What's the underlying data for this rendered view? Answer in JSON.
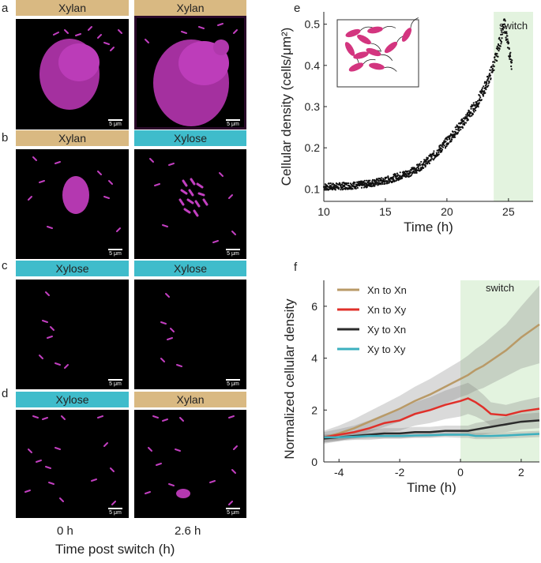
{
  "panels": {
    "a": {
      "letter": "a",
      "left_label": "Xylan",
      "right_label": "Xylan",
      "left_scale": "5 μm",
      "right_scale": "5 μm"
    },
    "b": {
      "letter": "b",
      "left_label": "Xylan",
      "right_label": "Xylose",
      "left_scale": "5 μm",
      "right_scale": "5 μm"
    },
    "c": {
      "letter": "c",
      "left_label": "Xylose",
      "right_label": "Xylose",
      "left_scale": "5 μm",
      "right_scale": "5 μm"
    },
    "d": {
      "letter": "d",
      "left_label": "Xylose",
      "right_label": "Xylan",
      "left_scale": "5 μm",
      "right_scale": "5 μm"
    }
  },
  "micro_bottom": {
    "left_time": "0 h",
    "right_time": "2.6 h",
    "xlabel": "Time post switch (h)"
  },
  "colors": {
    "xylan": "#d9b982",
    "xylose": "#3fbccb",
    "cells": "#c23fc0",
    "switch_shade": "#e3f3df"
  },
  "chart_data": [
    {
      "id": "e",
      "letter": "e",
      "type": "scatter",
      "title": "",
      "xlabel": "Time (h)",
      "ylabel": "Cellular density (cells/μm²)",
      "xlim": [
        10,
        27
      ],
      "ylim": [
        0.07,
        0.53
      ],
      "xticks": [
        10,
        15,
        20,
        25
      ],
      "yticks": [
        0.1,
        0.2,
        0.3,
        0.4,
        0.5
      ],
      "shade": {
        "from": 23.8,
        "to": 27,
        "label": "switch"
      },
      "trend": {
        "t": [
          10,
          11,
          12,
          13,
          14,
          15,
          16,
          17,
          17.5,
          18,
          18.5,
          19,
          19.5,
          20,
          20.5,
          21,
          21.5,
          22,
          22.5,
          23,
          23.5,
          24,
          24.4,
          24.7,
          25,
          25.3
        ],
        "y": [
          0.105,
          0.106,
          0.108,
          0.11,
          0.115,
          0.12,
          0.13,
          0.14,
          0.148,
          0.158,
          0.17,
          0.183,
          0.198,
          0.215,
          0.232,
          0.25,
          0.268,
          0.29,
          0.31,
          0.34,
          0.375,
          0.42,
          0.47,
          0.5,
          0.44,
          0.4
        ]
      },
      "point_count": 900
    },
    {
      "id": "f",
      "letter": "f",
      "type": "line",
      "title": "",
      "xlabel": "Time (h)",
      "ylabel": "Normalized cellular density",
      "xlim": [
        -4.5,
        2.6
      ],
      "ylim": [
        0,
        7
      ],
      "xticks": [
        -4,
        -2,
        0,
        2
      ],
      "yticks": [
        0,
        2,
        4,
        6
      ],
      "shade": {
        "from": 0,
        "to": 2.6,
        "label": "switch"
      },
      "x": [
        -4.5,
        -4,
        -3.5,
        -3,
        -2.5,
        -2,
        -1.5,
        -1,
        -0.5,
        0,
        0.25,
        0.5,
        0.75,
        1,
        1.5,
        2,
        2.6
      ],
      "series": [
        {
          "name": "Xn to Xn",
          "color": "#b99a67",
          "values": [
            0.95,
            1.1,
            1.3,
            1.55,
            1.8,
            2.05,
            2.35,
            2.6,
            2.9,
            3.2,
            3.35,
            3.55,
            3.7,
            3.9,
            4.3,
            4.8,
            5.3
          ],
          "band": [
            0.25,
            0.3,
            0.35,
            0.4,
            0.45,
            0.5,
            0.55,
            0.6,
            0.65,
            0.7,
            0.75,
            0.8,
            0.85,
            0.9,
            1.0,
            1.2,
            1.5
          ]
        },
        {
          "name": "Xn to Xy",
          "color": "#e0302a",
          "values": [
            0.95,
            1.05,
            1.15,
            1.3,
            1.5,
            1.6,
            1.85,
            2.0,
            2.2,
            2.35,
            2.45,
            2.3,
            2.1,
            1.85,
            1.8,
            1.95,
            2.05
          ],
          "band": [
            0.2,
            0.22,
            0.25,
            0.3,
            0.35,
            0.4,
            0.45,
            0.5,
            0.55,
            0.6,
            0.6,
            0.55,
            0.5,
            0.45,
            0.4,
            0.4,
            0.45
          ]
        },
        {
          "name": "Xy to Xn",
          "color": "#2b2b2b",
          "values": [
            0.9,
            0.95,
            1.0,
            1.05,
            1.1,
            1.1,
            1.15,
            1.15,
            1.2,
            1.2,
            1.2,
            1.25,
            1.3,
            1.35,
            1.45,
            1.55,
            1.6
          ],
          "band": [
            0.15,
            0.15,
            0.15,
            0.2,
            0.2,
            0.2,
            0.2,
            0.2,
            0.2,
            0.2,
            0.2,
            0.25,
            0.25,
            0.25,
            0.3,
            0.3,
            0.3
          ]
        },
        {
          "name": "Xy to Xy",
          "color": "#3cb0bf",
          "values": [
            0.95,
            0.95,
            0.97,
            1.0,
            1.0,
            1.0,
            1.02,
            1.03,
            1.05,
            1.05,
            1.05,
            1.0,
            1.0,
            1.0,
            1.02,
            1.05,
            1.08
          ],
          "band": [
            0.1,
            0.1,
            0.1,
            0.1,
            0.1,
            0.1,
            0.1,
            0.1,
            0.1,
            0.12,
            0.12,
            0.12,
            0.12,
            0.12,
            0.12,
            0.12,
            0.12
          ]
        }
      ]
    }
  ]
}
